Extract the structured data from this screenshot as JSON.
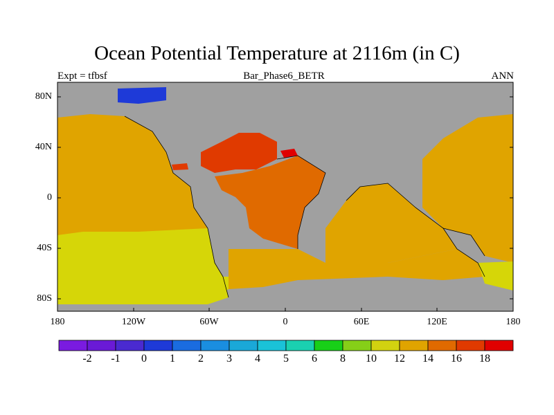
{
  "title": "Ocean Potential Temperature at 2116m (in C)",
  "left_label": "Expt = tfbsf",
  "center_label": "Bar_Phase6_BETR",
  "right_label": "ANN",
  "lat_labels": [
    "80N",
    "40N",
    "0",
    "40S",
    "80S"
  ],
  "lon_labels": [
    "180",
    "120W",
    "60W",
    "0",
    "60E",
    "120E",
    "180"
  ],
  "colorbar": {
    "labels": [
      "-2",
      "-1",
      "0",
      "1",
      "2",
      "3",
      "4",
      "5",
      "6",
      "8",
      "10",
      "12",
      "14",
      "16",
      "18"
    ],
    "colors": [
      "#7a1be0",
      "#6a1ad6",
      "#4a2ad0",
      "#1e3ad8",
      "#1a6ce0",
      "#1a8ee0",
      "#1aa8d8",
      "#1ac2d8",
      "#1ad0b0",
      "#18cf18",
      "#86cf18",
      "#d2d210",
      "#e0a400",
      "#e06a00",
      "#e03a00",
      "#e00000"
    ]
  },
  "colors": {
    "land": "#a0a0a0",
    "coast": "#000000",
    "band_12": "#d6d608",
    "band_14": "#e0a400",
    "band_16": "#e06a00",
    "band_18": "#e03a00",
    "band_20": "#e00000",
    "band_1": "#1e3ad8"
  }
}
